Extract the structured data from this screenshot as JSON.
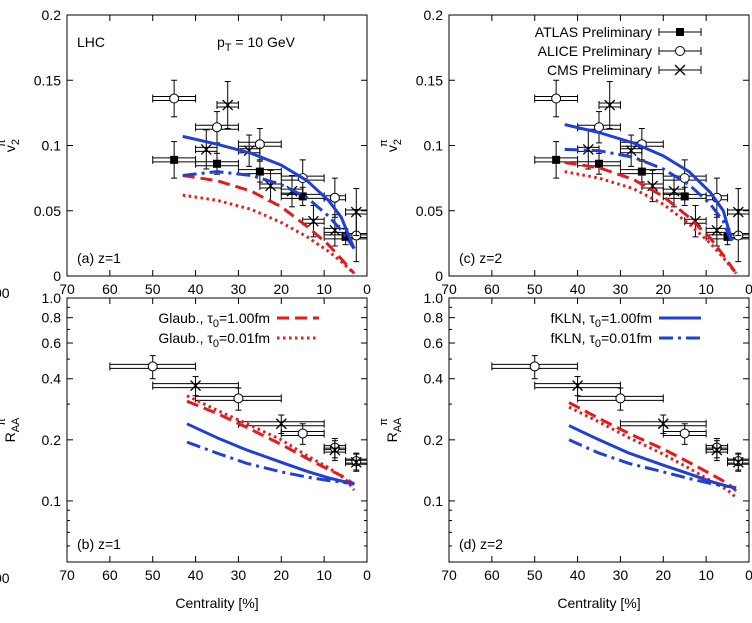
{
  "chart_data": [
    {
      "id": "a",
      "type": "line",
      "panel_label": "(a) z=1",
      "corner_left": "LHC",
      "corner_right": "p_T = 10 GeV",
      "ylabel": "v2^pi",
      "ylim": [
        0,
        0.2
      ],
      "xlim": [
        70,
        0
      ],
      "xticks": [
        70,
        60,
        50,
        40,
        30,
        20,
        10,
        0
      ],
      "yticks": [
        0,
        0.05,
        0.1,
        0.15,
        0.2
      ],
      "ytick_labels": [
        "0",
        "0.05",
        "0.1",
        "0.15",
        "0.2"
      ],
      "log": false,
      "xlabel": "",
      "curves": [
        {
          "name": "Glaub., τ0=1.00fm",
          "color": "#e41a1c",
          "style": "dash",
          "x": [
            43,
            35,
            27,
            20,
            14,
            9,
            6,
            3
          ],
          "y": [
            0.077,
            0.073,
            0.065,
            0.053,
            0.038,
            0.024,
            0.013,
            0.002
          ]
        },
        {
          "name": "Glaub., τ0=0.01fm",
          "color": "#e41a1c",
          "style": "dot",
          "x": [
            43,
            35,
            27,
            20,
            14,
            9,
            6,
            3
          ],
          "y": [
            0.062,
            0.058,
            0.051,
            0.041,
            0.03,
            0.019,
            0.011,
            0.002
          ]
        },
        {
          "name": "fKLN, τ0=1.00fm",
          "color": "#1f3fd6",
          "style": "solid",
          "x": [
            43,
            35,
            27,
            20,
            14,
            9,
            6,
            3
          ],
          "y": [
            0.107,
            0.101,
            0.094,
            0.085,
            0.073,
            0.058,
            0.045,
            0.021
          ]
        },
        {
          "name": "fKLN, τ0=0.01fm",
          "color": "#1f3fd6",
          "style": "dashdot",
          "x": [
            43,
            35,
            27,
            20,
            14,
            9,
            6,
            3
          ],
          "y": [
            0.077,
            0.08,
            0.077,
            0.07,
            0.06,
            0.046,
            0.035,
            0.021
          ]
        }
      ]
    },
    {
      "id": "c",
      "type": "line",
      "panel_label": "(c) z=2",
      "ylabel": "v2^pi",
      "ylim": [
        0,
        0.2
      ],
      "xlim": [
        70,
        0
      ],
      "xticks": [
        70,
        60,
        50,
        40,
        30,
        20,
        10,
        0
      ],
      "yticks": [
        0,
        0.05,
        0.1,
        0.15,
        0.2
      ],
      "ytick_labels": [
        "0",
        "0.05",
        "0.1",
        "0.15",
        "0.2"
      ],
      "log": false,
      "xlabel": "",
      "legend": [
        {
          "name": "ATLAS Preliminary",
          "marker": "square"
        },
        {
          "name": "ALICE Preliminary",
          "marker": "circle"
        },
        {
          "name": "CMS Preliminary",
          "marker": "cross"
        }
      ],
      "curves": [
        {
          "name": "Glaub., τ0=1.00fm",
          "color": "#e41a1c",
          "style": "dash",
          "x": [
            43,
            35,
            27,
            20,
            14,
            9,
            6,
            3
          ],
          "y": [
            0.087,
            0.083,
            0.074,
            0.061,
            0.045,
            0.029,
            0.016,
            0.002
          ]
        },
        {
          "name": "Glaub., τ0=0.01fm",
          "color": "#e41a1c",
          "style": "dot",
          "x": [
            43,
            35,
            27,
            20,
            14,
            9,
            6,
            3
          ],
          "y": [
            0.08,
            0.075,
            0.067,
            0.055,
            0.04,
            0.025,
            0.014,
            0.002
          ]
        },
        {
          "name": "fKLN, τ0=1.00fm",
          "color": "#1f3fd6",
          "style": "solid",
          "x": [
            43,
            35,
            27,
            20,
            14,
            9,
            6,
            4
          ],
          "y": [
            0.116,
            0.11,
            0.102,
            0.092,
            0.08,
            0.064,
            0.05,
            0.027
          ]
        },
        {
          "name": "fKLN, τ0=0.01fm",
          "color": "#1f3fd6",
          "style": "dashdot",
          "x": [
            43,
            35,
            27,
            20,
            14,
            9,
            6,
            4
          ],
          "y": [
            0.097,
            0.096,
            0.091,
            0.082,
            0.07,
            0.055,
            0.042,
            0.025
          ]
        }
      ]
    },
    {
      "id": "b",
      "type": "line",
      "panel_label": "(b) z=1",
      "ylabel": "R_AA^pi",
      "ylim": [
        0.05,
        1.0
      ],
      "xlim": [
        70,
        0
      ],
      "xticks": [
        70,
        60,
        50,
        40,
        30,
        20,
        10,
        0
      ],
      "yticks": [
        0.1,
        0.2,
        0.4,
        0.6,
        0.8,
        1.0
      ],
      "ytick_labels": [
        "0.1",
        "0.2",
        "0.4",
        "0.6",
        "0.8",
        "1.0"
      ],
      "log": true,
      "xlabel": "Centrality [%]",
      "legend": [
        {
          "name": "Glaub., τ0=1.00fm",
          "color": "#e41a1c",
          "style": "dash"
        },
        {
          "name": "Glaub., τ0=0.01fm",
          "color": "#e41a1c",
          "style": "dot"
        }
      ],
      "curves": [
        {
          "name": "Glaub., τ0=1.00fm",
          "color": "#e41a1c",
          "style": "dash",
          "x": [
            42,
            35,
            28,
            20,
            14,
            9,
            5,
            3
          ],
          "y": [
            0.31,
            0.27,
            0.23,
            0.19,
            0.162,
            0.143,
            0.13,
            0.12
          ]
        },
        {
          "name": "Glaub., τ0=0.01fm",
          "color": "#e41a1c",
          "style": "dot",
          "x": [
            42,
            35,
            28,
            20,
            14,
            9,
            5,
            3
          ],
          "y": [
            0.33,
            0.28,
            0.24,
            0.2,
            0.167,
            0.146,
            0.128,
            0.113
          ]
        },
        {
          "name": "fKLN, τ0=1.00fm",
          "color": "#1f3fd6",
          "style": "solid",
          "x": [
            42,
            35,
            28,
            20,
            14,
            9,
            5,
            3
          ],
          "y": [
            0.24,
            0.205,
            0.178,
            0.155,
            0.14,
            0.13,
            0.124,
            0.122
          ]
        },
        {
          "name": "fKLN, τ0=0.01fm",
          "color": "#1f3fd6",
          "style": "dashdot",
          "x": [
            42,
            35,
            28,
            20,
            14,
            9,
            5,
            3
          ],
          "y": [
            0.195,
            0.172,
            0.153,
            0.139,
            0.131,
            0.126,
            0.123,
            0.122
          ]
        }
      ]
    },
    {
      "id": "d",
      "type": "line",
      "panel_label": "(d) z=2",
      "ylabel": "R_AA^pi",
      "ylim": [
        0.05,
        1.0
      ],
      "xlim": [
        70,
        0
      ],
      "xticks": [
        70,
        60,
        50,
        40,
        30,
        20,
        10,
        0
      ],
      "yticks": [
        0.1,
        0.2,
        0.4,
        0.6,
        0.8,
        1.0
      ],
      "ytick_labels": [
        "0.1",
        "0.2",
        "0.4",
        "0.6",
        "0.8",
        "1.0"
      ],
      "log": true,
      "xlabel": "Centrality [%]",
      "legend": [
        {
          "name": "fKLN, τ0=1.00fm",
          "color": "#1f3fd6",
          "style": "solid"
        },
        {
          "name": "fKLN, τ0=0.01fm",
          "color": "#1f3fd6",
          "style": "dashdot"
        }
      ],
      "curves": [
        {
          "name": "Glaub., τ0=1.00fm",
          "color": "#e41a1c",
          "style": "dash",
          "x": [
            42,
            35,
            28,
            20,
            14,
            9,
            5,
            3
          ],
          "y": [
            0.305,
            0.255,
            0.215,
            0.18,
            0.155,
            0.136,
            0.122,
            0.112
          ]
        },
        {
          "name": "Glaub., τ0=0.01fm",
          "color": "#e41a1c",
          "style": "dot",
          "x": [
            42,
            35,
            28,
            20,
            14,
            9,
            5,
            3
          ],
          "y": [
            0.29,
            0.245,
            0.205,
            0.17,
            0.145,
            0.126,
            0.113,
            0.104
          ]
        },
        {
          "name": "fKLN, τ0=1.00fm",
          "color": "#1f3fd6",
          "style": "solid",
          "x": [
            42,
            35,
            28,
            20,
            14,
            9,
            5,
            3
          ],
          "y": [
            0.235,
            0.2,
            0.172,
            0.15,
            0.136,
            0.125,
            0.118,
            0.116
          ]
        },
        {
          "name": "fKLN, τ0=0.01fm",
          "color": "#1f3fd6",
          "style": "dashdot",
          "x": [
            42,
            35,
            28,
            20,
            14,
            9,
            5,
            3
          ],
          "y": [
            0.2,
            0.172,
            0.153,
            0.139,
            0.129,
            0.122,
            0.118,
            0.116
          ]
        }
      ]
    }
  ],
  "experimental_data": {
    "v2": {
      "ATLAS Preliminary": [
        {
          "x": 45,
          "xerr": 5,
          "y": 0.089,
          "yerr": 0.014
        },
        {
          "x": 35,
          "xerr": 5,
          "y": 0.086,
          "yerr": 0.008
        },
        {
          "x": 25,
          "xerr": 5,
          "y": 0.08,
          "yerr": 0.008
        },
        {
          "x": 15,
          "xerr": 5,
          "y": 0.061,
          "yerr": 0.007
        },
        {
          "x": 5,
          "xerr": 5,
          "y": 0.03,
          "yerr": 0.006
        }
      ],
      "ALICE Preliminary": [
        {
          "x": 45,
          "xerr": 5,
          "y": 0.136,
          "yerr": 0.014
        },
        {
          "x": 35,
          "xerr": 5,
          "y": 0.114,
          "yerr": 0.012
        },
        {
          "x": 25,
          "xerr": 5,
          "y": 0.101,
          "yerr": 0.012
        },
        {
          "x": 15,
          "xerr": 5,
          "y": 0.075,
          "yerr": 0.014
        },
        {
          "x": 7.5,
          "xerr": 2.5,
          "y": 0.06,
          "yerr": 0.015
        },
        {
          "x": 2.5,
          "xerr": 2.5,
          "y": 0.031,
          "yerr": 0.02
        }
      ],
      "CMS Preliminary": [
        {
          "x": 37.5,
          "xerr": 2.5,
          "y": 0.097,
          "yerr": 0.015
        },
        {
          "x": 32.5,
          "xerr": 2.5,
          "y": 0.131,
          "yerr": 0.018
        },
        {
          "x": 27.5,
          "xerr": 2.5,
          "y": 0.096,
          "yerr": 0.012
        },
        {
          "x": 22.5,
          "xerr": 2.5,
          "y": 0.069,
          "yerr": 0.012
        },
        {
          "x": 17.5,
          "xerr": 2.5,
          "y": 0.065,
          "yerr": 0.012
        },
        {
          "x": 12.5,
          "xerr": 2.5,
          "y": 0.042,
          "yerr": 0.012
        },
        {
          "x": 7.5,
          "xerr": 2.5,
          "y": 0.035,
          "yerr": 0.012
        },
        {
          "x": 2.5,
          "xerr": 2.5,
          "y": 0.049,
          "yerr": 0.018
        }
      ]
    },
    "raa": {
      "ALICE Preliminary": [
        {
          "x": 50,
          "xerr": 10,
          "y": 0.46,
          "yerr": 0.06
        },
        {
          "x": 30,
          "xerr": 10,
          "y": 0.32,
          "yerr": 0.04
        },
        {
          "x": 15,
          "xerr": 5,
          "y": 0.215,
          "yerr": 0.025
        },
        {
          "x": 7.5,
          "xerr": 2.5,
          "y": 0.183,
          "yerr": 0.02
        },
        {
          "x": 2.5,
          "xerr": 2.5,
          "y": 0.157,
          "yerr": 0.015
        }
      ],
      "CMS Preliminary": [
        {
          "x": 40,
          "xerr": 10,
          "y": 0.37,
          "yerr": 0.04
        },
        {
          "x": 20,
          "xerr": 10,
          "y": 0.24,
          "yerr": 0.025
        },
        {
          "x": 7.5,
          "xerr": 2.5,
          "y": 0.178,
          "yerr": 0.02
        },
        {
          "x": 2.5,
          "xerr": 2.5,
          "y": 0.155,
          "yerr": 0.015
        }
      ]
    }
  },
  "edge_labels": {
    "left_mid": "00",
    "left_bottom": "00"
  }
}
